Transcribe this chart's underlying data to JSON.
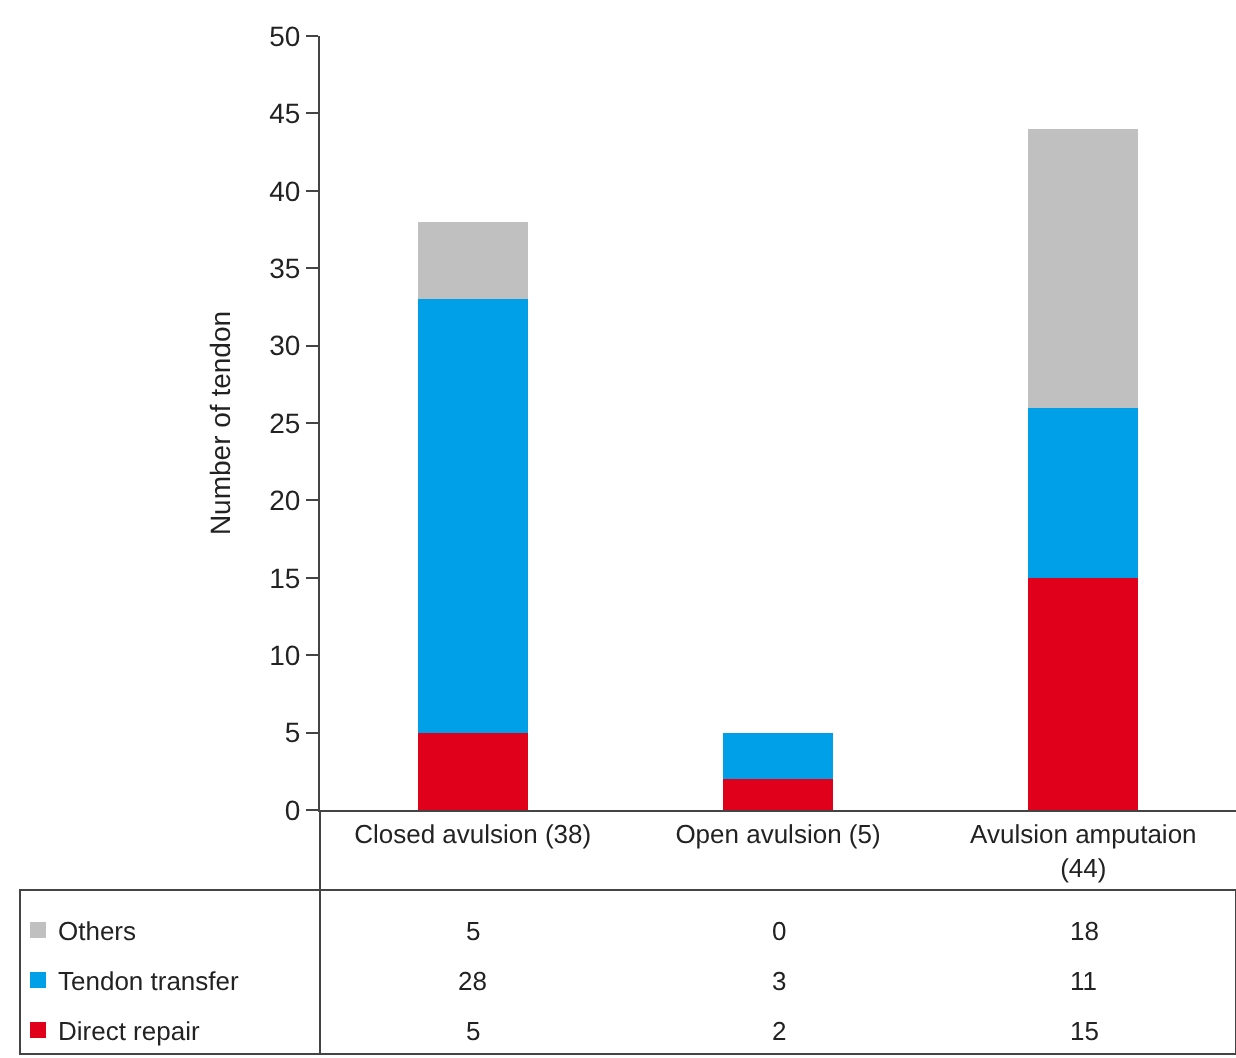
{
  "chart_data": {
    "type": "bar",
    "stacked": true,
    "ylabel": "Number of tendon",
    "categories": [
      "Closed avulsion (38)",
      "Open avulsion (5)",
      "Avulsion amputaion (44)"
    ],
    "series": [
      {
        "name": "Direct repair",
        "color": "#e0001b",
        "values": [
          5,
          2,
          15
        ]
      },
      {
        "name": "Tendon transfer",
        "color": "#00a0e9",
        "values": [
          28,
          3,
          11
        ]
      },
      {
        "name": "Others",
        "color": "#c0c0c0",
        "values": [
          5,
          0,
          18
        ]
      }
    ],
    "ylim": [
      0,
      50
    ],
    "yticks": [
      0,
      5,
      10,
      15,
      20,
      25,
      30,
      35,
      40,
      45,
      50
    ],
    "data_labels": true,
    "legend": "bottom"
  }
}
